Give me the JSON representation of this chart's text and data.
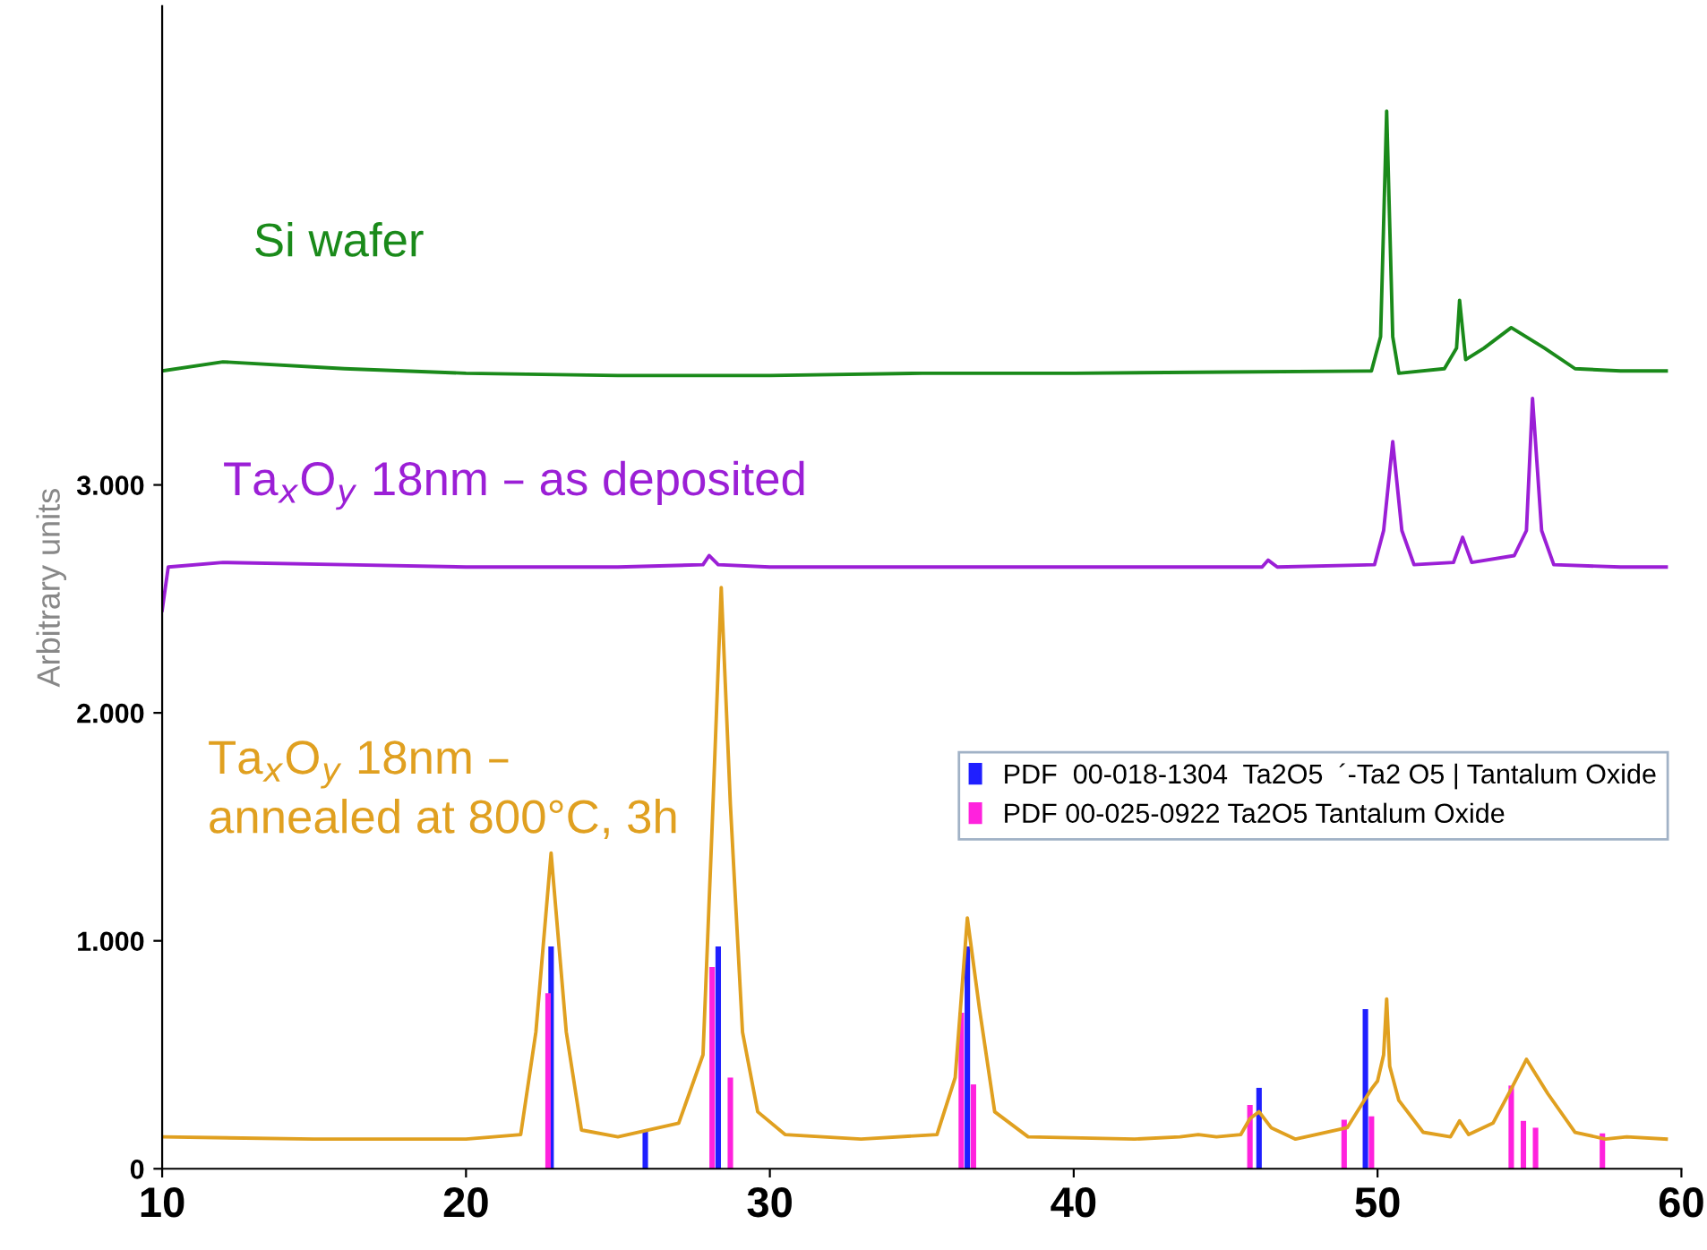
{
  "chart_data": {
    "type": "line",
    "ylabel": "Arbitrary units",
    "xlim": [
      10,
      60
    ],
    "xticks": [
      10,
      20,
      30,
      40,
      50,
      60
    ],
    "ylim": [
      0,
      5100
    ],
    "yticks": [
      {
        "value": 0,
        "label": "0"
      },
      {
        "value": 1000,
        "label": "1.000"
      },
      {
        "value": 2000,
        "label": "2.000"
      },
      {
        "value": 3000,
        "label": "3.000"
      }
    ],
    "grid": false,
    "legend": "right",
    "marker": "none",
    "line_style": "solid",
    "series": [
      {
        "name": "Si wafer",
        "color": "#1a8a1a",
        "x": [
          10,
          12,
          16,
          20,
          25,
          30,
          35,
          40,
          45,
          49.8,
          50.1,
          50.3,
          50.5,
          50.7,
          52.2,
          52.6,
          52.7,
          52.9,
          53.5,
          54.4,
          55.5,
          56.5,
          58,
          59.5
        ],
        "values": [
          3500,
          3540,
          3510,
          3490,
          3480,
          3480,
          3490,
          3490,
          3495,
          3500,
          3650,
          4640,
          3650,
          3490,
          3510,
          3600,
          3810,
          3550,
          3600,
          3690,
          3600,
          3510,
          3500,
          3500
        ]
      },
      {
        "name": "Ta$_{x}$O$_{y}$ 18nm – as deposited",
        "color": "#9b1fd6",
        "x": [
          10,
          10.2,
          12,
          16,
          20,
          25,
          27.8,
          28.0,
          28.3,
          30,
          35,
          40,
          45,
          46.2,
          46.4,
          46.7,
          49.9,
          50.2,
          50.5,
          50.8,
          51.2,
          52.5,
          52.8,
          53.1,
          54.5,
          54.9,
          55.1,
          55.4,
          55.8,
          58,
          59.5
        ],
        "values": [
          2450,
          2640,
          2660,
          2650,
          2640,
          2640,
          2650,
          2690,
          2650,
          2640,
          2640,
          2640,
          2640,
          2640,
          2670,
          2640,
          2650,
          2800,
          3190,
          2800,
          2650,
          2660,
          2770,
          2660,
          2690,
          2800,
          3380,
          2800,
          2650,
          2640,
          2640
        ]
      },
      {
        "name": "Ta$_{x}$O$_{y}$ 18nm –\nannealed at 800°C, 3h",
        "color": "#e0a020",
        "x": [
          10,
          15,
          20,
          21.8,
          22.3,
          22.8,
          23.3,
          23.8,
          25,
          27,
          27.8,
          28.1,
          28.4,
          28.7,
          29.1,
          29.6,
          30.5,
          33,
          35.5,
          36.1,
          36.5,
          36.9,
          37.4,
          38.5,
          42,
          43.5,
          44.1,
          44.7,
          45.5,
          45.8,
          46.1,
          46.5,
          47.3,
          49,
          49.8,
          50.0,
          50.2,
          50.3,
          50.4,
          50.7,
          51.5,
          52.4,
          52.7,
          53.0,
          53.8,
          54.4,
          54.9,
          55.6,
          56.5,
          57.5,
          58.2,
          59.5
        ],
        "values": [
          140,
          130,
          130,
          150,
          600,
          1385,
          600,
          170,
          140,
          200,
          500,
          1500,
          2550,
          1600,
          600,
          250,
          150,
          130,
          150,
          400,
          1100,
          700,
          250,
          140,
          130,
          140,
          150,
          140,
          150,
          220,
          250,
          180,
          130,
          180,
          350,
          385,
          500,
          745,
          450,
          300,
          160,
          140,
          210,
          150,
          200,
          350,
          480,
          330,
          160,
          130,
          140,
          130
        ]
      },
      {
        "name": "PDF  00-018-1304  Ta2O5  ´-Ta2 O5 | Tantalum Oxide",
        "type": "bar",
        "color": "#1f1fff",
        "x": [
          22.8,
          25.9,
          28.3,
          36.5,
          46.1,
          49.6
        ],
        "values": [
          975,
          170,
          975,
          975,
          355,
          700
        ]
      },
      {
        "name": "PDF 00-025-0922 Ta2O5 Tantalum Oxide",
        "type": "bar",
        "color": "#ff22dd",
        "x": [
          22.7,
          28.1,
          28.7,
          36.3,
          36.7,
          45.8,
          48.9,
          49.8,
          54.4,
          54.8,
          55.2,
          57.4
        ],
        "values": [
          770,
          885,
          400,
          685,
          370,
          280,
          215,
          230,
          365,
          210,
          180,
          155
        ]
      }
    ]
  }
}
